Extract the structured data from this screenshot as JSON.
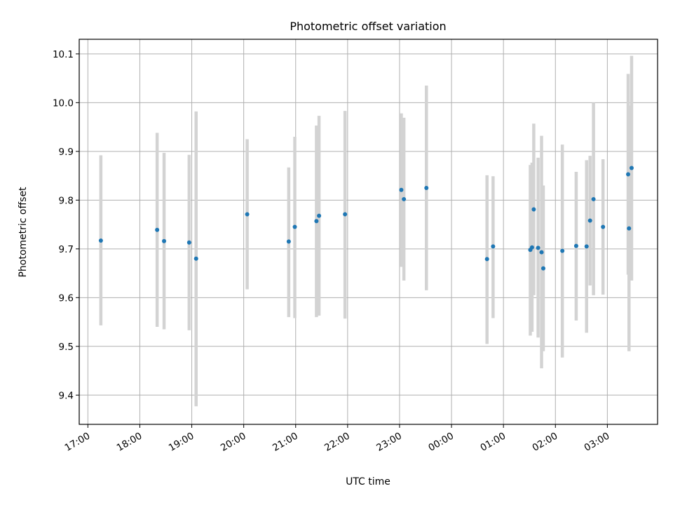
{
  "chart_data": {
    "type": "scatter",
    "title": "Photometric offset variation",
    "xlabel": "UTC time",
    "ylabel": "Photometric offset",
    "x_unit": "UTC",
    "x_start": "17:00",
    "xlim": [
      "16:50",
      "03:58"
    ],
    "ylim": [
      9.34,
      10.13
    ],
    "x_tick_labels": [
      "17:00",
      "18:00",
      "19:00",
      "20:00",
      "21:00",
      "22:00",
      "23:00",
      "00:00",
      "01:00",
      "02:00",
      "03:00"
    ],
    "y_ticks": [
      9.4,
      9.5,
      9.6,
      9.7,
      9.8,
      9.9,
      10.0,
      10.1
    ],
    "y_tick_labels": [
      "9.4",
      "9.5",
      "9.6",
      "9.7",
      "9.8",
      "9.9",
      "10.0",
      "10.1"
    ],
    "grid": true,
    "point_color": "#1f77b4",
    "errorbar_color": "#d3d3d3",
    "points": [
      {
        "t": "17:15",
        "y": 9.717,
        "lo": 9.543,
        "hi": 9.892
      },
      {
        "t": "18:20",
        "y": 9.739,
        "lo": 9.54,
        "hi": 9.938
      },
      {
        "t": "18:28",
        "y": 9.716,
        "lo": 9.535,
        "hi": 9.897
      },
      {
        "t": "18:57",
        "y": 9.713,
        "lo": 9.533,
        "hi": 9.893
      },
      {
        "t": "19:05",
        "y": 9.68,
        "lo": 9.377,
        "hi": 9.982
      },
      {
        "t": "20:04",
        "y": 9.771,
        "lo": 9.617,
        "hi": 9.925
      },
      {
        "t": "20:52",
        "y": 9.715,
        "lo": 9.56,
        "hi": 9.867
      },
      {
        "t": "20:59",
        "y": 9.745,
        "lo": 9.558,
        "hi": 9.93
      },
      {
        "t": "21:24",
        "y": 9.757,
        "lo": 9.56,
        "hi": 9.953
      },
      {
        "t": "21:27",
        "y": 9.768,
        "lo": 9.563,
        "hi": 9.973
      },
      {
        "t": "21:57",
        "y": 9.771,
        "lo": 9.557,
        "hi": 9.983
      },
      {
        "t": "23:02",
        "y": 9.821,
        "lo": 9.663,
        "hi": 9.978
      },
      {
        "t": "23:05",
        "y": 9.802,
        "lo": 9.635,
        "hi": 9.969
      },
      {
        "t": "23:31",
        "y": 9.825,
        "lo": 9.615,
        "hi": 10.035
      },
      {
        "t": "00:41",
        "y": 9.679,
        "lo": 9.505,
        "hi": 9.851
      },
      {
        "t": "00:48",
        "y": 9.705,
        "lo": 9.558,
        "hi": 9.849
      },
      {
        "t": "01:31",
        "y": 9.698,
        "lo": 9.522,
        "hi": 9.872
      },
      {
        "t": "01:33",
        "y": 9.703,
        "lo": 9.53,
        "hi": 9.877
      },
      {
        "t": "01:35",
        "y": 9.781,
        "lo": 9.605,
        "hi": 9.957
      },
      {
        "t": "01:40",
        "y": 9.702,
        "lo": 9.518,
        "hi": 9.887
      },
      {
        "t": "01:44",
        "y": 9.693,
        "lo": 9.455,
        "hi": 9.932
      },
      {
        "t": "01:46",
        "y": 9.66,
        "lo": 9.49,
        "hi": 9.83
      },
      {
        "t": "02:08",
        "y": 9.696,
        "lo": 9.477,
        "hi": 9.914
      },
      {
        "t": "02:24",
        "y": 9.706,
        "lo": 9.553,
        "hi": 9.858
      },
      {
        "t": "02:36",
        "y": 9.705,
        "lo": 9.528,
        "hi": 9.882
      },
      {
        "t": "02:40",
        "y": 9.758,
        "lo": 9.625,
        "hi": 9.891
      },
      {
        "t": "02:44",
        "y": 9.802,
        "lo": 9.605,
        "hi": 10.0
      },
      {
        "t": "02:55",
        "y": 9.745,
        "lo": 9.606,
        "hi": 9.884
      },
      {
        "t": "03:24",
        "y": 9.853,
        "lo": 9.647,
        "hi": 10.059
      },
      {
        "t": "03:25",
        "y": 9.742,
        "lo": 9.49,
        "hi": 9.994
      },
      {
        "t": "03:28",
        "y": 9.866,
        "lo": 9.635,
        "hi": 10.096
      }
    ]
  }
}
